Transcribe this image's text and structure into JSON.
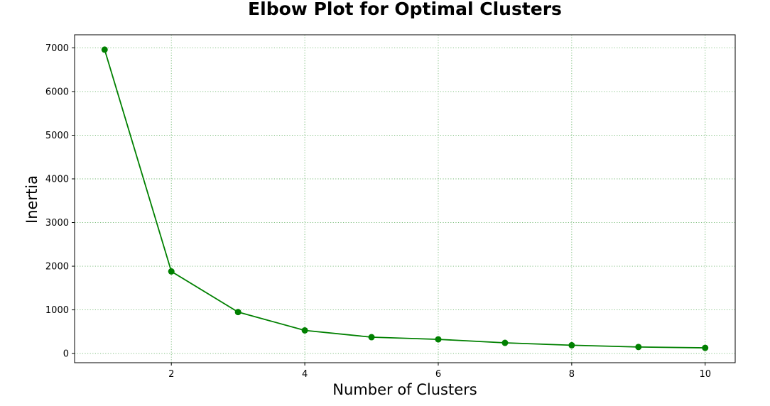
{
  "chart_data": {
    "type": "line",
    "title": "Elbow Plot for Optimal Clusters",
    "xlabel": "Number of Clusters",
    "ylabel": "Inertia",
    "x": [
      1,
      2,
      3,
      4,
      5,
      6,
      7,
      8,
      9,
      10
    ],
    "series": [
      {
        "values": [
          6960,
          1880,
          950,
          530,
          375,
          325,
          245,
          190,
          150,
          130
        ],
        "color": "#008000",
        "marker": "circle"
      }
    ],
    "xlim": [
      0.55,
      10.45
    ],
    "ylim": [
      -210,
      7300
    ],
    "xticks": [
      2,
      4,
      6,
      8,
      10
    ],
    "yticks": [
      0,
      1000,
      2000,
      3000,
      4000,
      5000,
      6000,
      7000
    ],
    "grid": true,
    "grid_style": "dotted",
    "grid_color": "#008000",
    "legend": "none"
  }
}
